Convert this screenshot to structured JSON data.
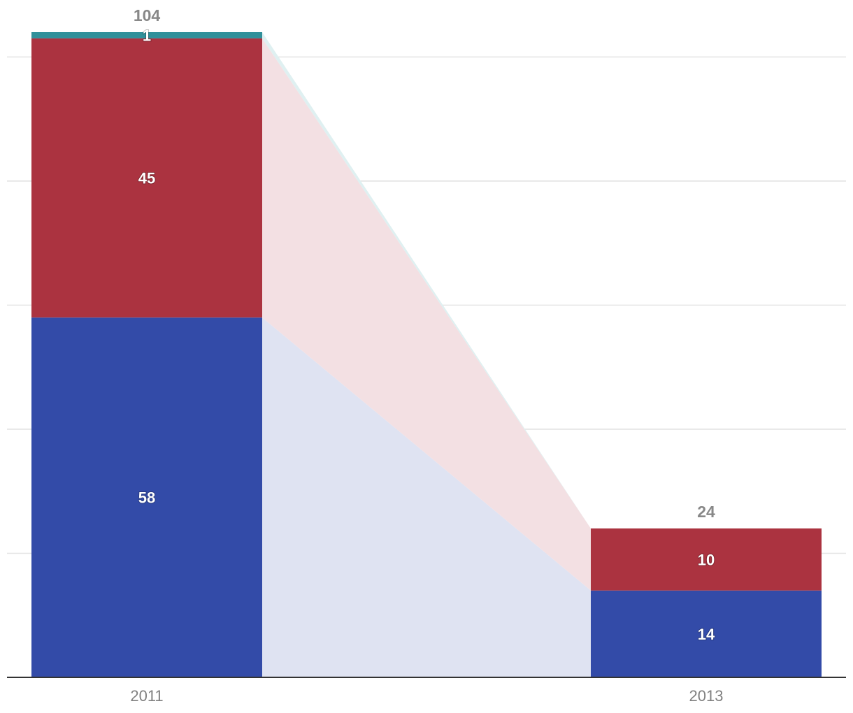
{
  "chart_data": {
    "type": "bar",
    "stacked": true,
    "categories": [
      "2011",
      "2013"
    ],
    "series": [
      {
        "key": "s1",
        "color": "#334ba8",
        "band_color": "#dfe3f2",
        "values": [
          58,
          14
        ]
      },
      {
        "key": "s2",
        "color": "#ab3340",
        "band_color": "#f3e0e3",
        "values": [
          45,
          10
        ]
      },
      {
        "key": "s3",
        "color": "#30909a",
        "band_color": "#dff0f1",
        "values": [
          1,
          0
        ]
      }
    ],
    "totals": [
      "104",
      "24"
    ],
    "segment_labels": [
      [
        "58",
        "45",
        "1"
      ],
      [
        "14",
        "10",
        ""
      ]
    ],
    "ylim": [
      0,
      110
    ],
    "gridlines": [
      20,
      40,
      60,
      80,
      100
    ],
    "grid": true,
    "legend": "none",
    "title": "",
    "xlabel": "",
    "ylabel": ""
  }
}
